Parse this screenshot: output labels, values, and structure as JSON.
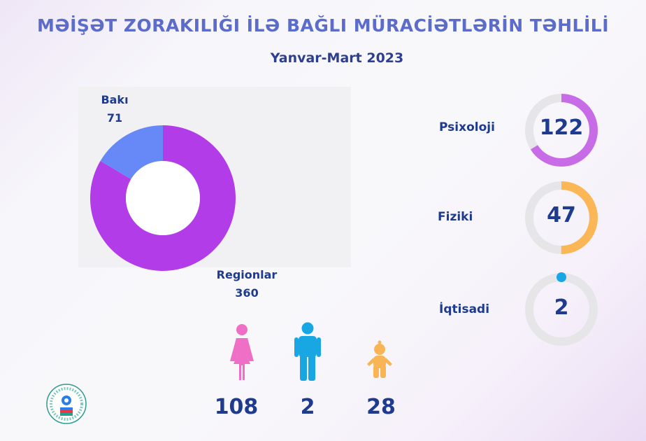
{
  "title": "MƏİŞƏT ZORAKILIĞI İLƏ BAĞLI MÜRACİƏTLƏRİN TƏHLİLİ",
  "subtitle": "Yanvar-Mart 2023",
  "chart_data": [
    {
      "type": "pie",
      "categories": [
        "Bakı",
        "Regionlar"
      ],
      "values": [
        71,
        360
      ],
      "colors": [
        "#6689f7",
        "#b23ce7"
      ],
      "donut": true
    },
    {
      "type": "bar",
      "categories": [
        "Psixoloji",
        "Fiziki",
        "İqtisadi"
      ],
      "values": [
        122,
        47,
        2
      ],
      "colors": [
        "#c86be6",
        "#fbb655",
        "#17a6e6"
      ],
      "ring_fill_fraction": [
        0.66,
        0.5,
        0.02
      ]
    }
  ],
  "donut_labels": {
    "baku_name": "Bakı",
    "baku_value": "71",
    "regions_name": "Regionlar",
    "regions_value": "360"
  },
  "types": [
    {
      "label": "Psixoloji",
      "value": "122"
    },
    {
      "label": "Fiziki",
      "value": "47"
    },
    {
      "label": "İqtisadi",
      "value": "2"
    }
  ],
  "people": [
    {
      "icon": "woman-icon",
      "value": "108",
      "color": "#ee6fc5"
    },
    {
      "icon": "man-icon",
      "value": "2",
      "color": "#19a7e4"
    },
    {
      "icon": "child-icon",
      "value": "28",
      "color": "#f9b455"
    }
  ]
}
